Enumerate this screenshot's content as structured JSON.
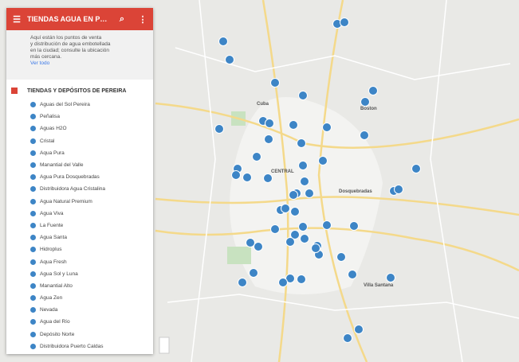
{
  "header": {
    "title": "TIENDAS AGUA EN PEREIRA E..."
  },
  "description": {
    "lines": [
      "Aquí están los puntos de venta",
      "y distribución de agua embotellada",
      "en la ciudad; consulte la ubicación",
      "más cercana."
    ],
    "link": "Ver todo"
  },
  "layer": {
    "title": "TIENDAS Y DEPÓSITOS DE PEREIRA",
    "items": [
      "Aguas del Sol Pereira",
      "Peñalisa",
      "Aguas H2O",
      "Cristal",
      "Aqua Pura",
      "Manantial del Valle",
      "Agua Pura Dosquebradas",
      "Distribuidora Agua Cristalina",
      "Agua Natural Premium",
      "Agua Viva",
      "La Fuente",
      "Agua Santa",
      "Hidroplus",
      "Aqua Fresh",
      "Agua Sol y Luna",
      "Manantial Alto",
      "Agua Zen",
      "Nevada",
      "Agua del Río",
      "Depósito Norte",
      "Distribuidora Puerto Caldas"
    ]
  },
  "map": {
    "labels": [
      "CENTRAL",
      "Dosquebradas",
      "Cuba",
      "Boston",
      "Villa Santana"
    ]
  }
}
